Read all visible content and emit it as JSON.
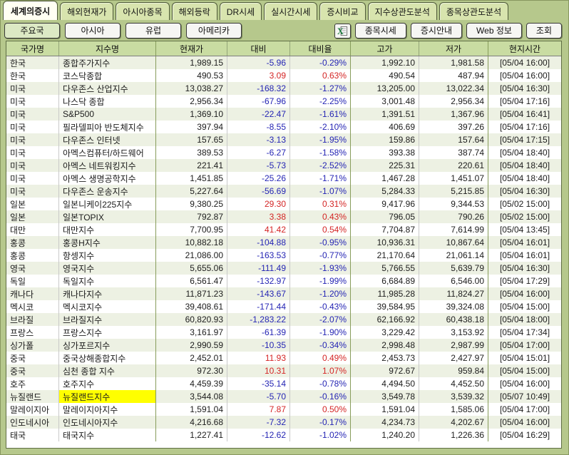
{
  "tabs": [
    {
      "label": "세계의증시",
      "active": true
    },
    {
      "label": "해외현재가",
      "active": false
    },
    {
      "label": "아시아종목",
      "active": false
    },
    {
      "label": "해외등락",
      "active": false
    },
    {
      "label": "DR시세",
      "active": false
    },
    {
      "label": "실시간시세",
      "active": false
    },
    {
      "label": "증시비교",
      "active": false
    },
    {
      "label": "지수상관도분석",
      "active": false
    },
    {
      "label": "종목상관도분석",
      "active": false
    }
  ],
  "toolbar": {
    "regions": [
      {
        "label": "주요국",
        "selected": true
      },
      {
        "label": "아시아",
        "selected": false
      },
      {
        "label": "유럽",
        "selected": false
      },
      {
        "label": "아메리카",
        "selected": false
      }
    ],
    "excel_icon": "excel-export-icon",
    "actions": [
      "종목시세",
      "증시안내",
      "Web 정보",
      "조회"
    ]
  },
  "table": {
    "columns": [
      "국가명",
      "지수명",
      "현재가",
      "대비",
      "대비율",
      "고가",
      "저가",
      "현지시간"
    ],
    "rows": [
      [
        "한국",
        "종합주가지수",
        "1,989.15",
        "-5.96",
        "-0.29%",
        "1,992.10",
        "1,981.58",
        "[05/04 16:00]"
      ],
      [
        "한국",
        "코스닥종합",
        "490.53",
        "3.09",
        "0.63%",
        "490.54",
        "487.94",
        "[05/04 16:00]"
      ],
      [
        "미국",
        "다우존스 산업지수",
        "13,038.27",
        "-168.32",
        "-1.27%",
        "13,205.00",
        "13,022.34",
        "[05/04 16:30]"
      ],
      [
        "미국",
        "나스닥 종합",
        "2,956.34",
        "-67.96",
        "-2.25%",
        "3,001.48",
        "2,956.34",
        "[05/04 17:16]"
      ],
      [
        "미국",
        "S&P500",
        "1,369.10",
        "-22.47",
        "-1.61%",
        "1,391.51",
        "1,367.96",
        "[05/04 16:41]"
      ],
      [
        "미국",
        "필라델피아 반도체지수",
        "397.94",
        "-8.55",
        "-2.10%",
        "406.69",
        "397.26",
        "[05/04 17:16]"
      ],
      [
        "미국",
        "다우존스 인터넷",
        "157.65",
        "-3.13",
        "-1.95%",
        "159.86",
        "157.64",
        "[05/04 17:15]"
      ],
      [
        "미국",
        "아멕스컴퓨터/하드웨어",
        "389.53",
        "-6.27",
        "-1.58%",
        "393.38",
        "387.74",
        "[05/04 18:40]"
      ],
      [
        "미국",
        "아멕스 네트워킹지수",
        "221.41",
        "-5.73",
        "-2.52%",
        "225.31",
        "220.61",
        "[05/04 18:40]"
      ],
      [
        "미국",
        "아멕스 생명공학지수",
        "1,451.85",
        "-25.26",
        "-1.71%",
        "1,467.28",
        "1,451.07",
        "[05/04 18:40]"
      ],
      [
        "미국",
        "다우존스 운송지수",
        "5,227.64",
        "-56.69",
        "-1.07%",
        "5,284.33",
        "5,215.85",
        "[05/04 16:30]"
      ],
      [
        "일본",
        "일본니케이225지수",
        "9,380.25",
        "29.30",
        "0.31%",
        "9,417.96",
        "9,344.53",
        "[05/02 15:00]"
      ],
      [
        "일본",
        "일본TOPIX",
        "792.87",
        "3.38",
        "0.43%",
        "796.05",
        "790.26",
        "[05/02 15:00]"
      ],
      [
        "대만",
        "대만지수",
        "7,700.95",
        "41.42",
        "0.54%",
        "7,704.87",
        "7,614.99",
        "[05/04 13:45]"
      ],
      [
        "홍콩",
        "홍콩H지수",
        "10,882.18",
        "-104.88",
        "-0.95%",
        "10,936.31",
        "10,867.64",
        "[05/04 16:01]"
      ],
      [
        "홍콩",
        "항셍지수",
        "21,086.00",
        "-163.53",
        "-0.77%",
        "21,170.64",
        "21,061.14",
        "[05/04 16:01]"
      ],
      [
        "영국",
        "영국지수",
        "5,655.06",
        "-111.49",
        "-1.93%",
        "5,766.55",
        "5,639.79",
        "[05/04 16:30]"
      ],
      [
        "독일",
        "독일지수",
        "6,561.47",
        "-132.97",
        "-1.99%",
        "6,684.89",
        "6,546.00",
        "[05/04 17:29]"
      ],
      [
        "캐나다",
        "캐나다지수",
        "11,871.23",
        "-143.67",
        "-1.20%",
        "11,985.28",
        "11,824.27",
        "[05/04 16:00]"
      ],
      [
        "멕시코",
        "멕시코지수",
        "39,408.61",
        "-171.44",
        "-0.43%",
        "39,584.95",
        "39,324.08",
        "[05/04 15:00]"
      ],
      [
        "브라질",
        "브라질지수",
        "60,820.93",
        "-1,283.22",
        "-2.07%",
        "62,166.92",
        "60,438.18",
        "[05/04 18:00]"
      ],
      [
        "프랑스",
        "프랑스지수",
        "3,161.97",
        "-61.39",
        "-1.90%",
        "3,229.42",
        "3,153.92",
        "[05/04 17:34]"
      ],
      [
        "싱가폴",
        "싱가포르지수",
        "2,990.59",
        "-10.35",
        "-0.34%",
        "2,998.48",
        "2,987.99",
        "[05/04 17:00]"
      ],
      [
        "중국",
        "중국상해종합지수",
        "2,452.01",
        "11.93",
        "0.49%",
        "2,453.73",
        "2,427.97",
        "[05/04 15:01]"
      ],
      [
        "중국",
        "심천 종합 지수",
        "972.30",
        "10.31",
        "1.07%",
        "972.67",
        "959.84",
        "[05/04 15:00]"
      ],
      [
        "호주",
        "호주지수",
        "4,459.39",
        "-35.14",
        "-0.78%",
        "4,494.50",
        "4,452.50",
        "[05/04 16:00]"
      ],
      [
        "뉴질랜드",
        "뉴질랜드지수",
        "3,544.08",
        "-5.70",
        "-0.16%",
        "3,549.78",
        "3,539.32",
        "[05/07 10:49]"
      ],
      [
        "말레이지아",
        "말레이지아지수",
        "1,591.04",
        "7.87",
        "0.50%",
        "1,591.04",
        "1,585.06",
        "[05/04 17:00]"
      ],
      [
        "인도네시아",
        "인도네시아지수",
        "4,216.68",
        "-7.32",
        "-0.17%",
        "4,234.73",
        "4,202.67",
        "[05/04 16:00]"
      ],
      [
        "태국",
        "태국지수",
        "1,227.41",
        "-12.62",
        "-1.02%",
        "1,240.20",
        "1,226.36",
        "[05/04 16:29]"
      ]
    ],
    "highlighted_cell": {
      "row_index": 26,
      "col_index": 1
    }
  },
  "colors": {
    "up": "#d42525",
    "down": "#2525b4",
    "highlight": "#ffff00",
    "frame_green": "#b6c88c",
    "header_green": "#c9dca2",
    "alt_row": "#edf1e3"
  }
}
